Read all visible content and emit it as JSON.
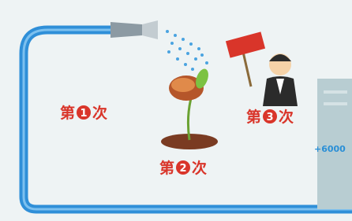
{
  "steps": [
    {
      "prefix": "第",
      "number": "1",
      "suffix": "次"
    },
    {
      "prefix": "第",
      "number": "2",
      "suffix": "次"
    },
    {
      "prefix": "第",
      "number": "3",
      "suffix": "次"
    }
  ],
  "highlight": "+6000"
}
